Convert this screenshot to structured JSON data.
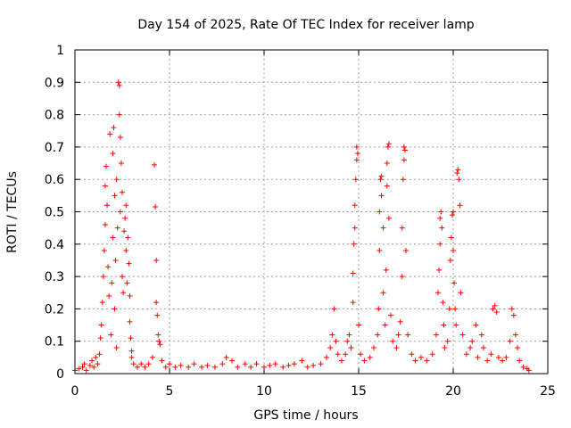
{
  "chart_data": {
    "type": "scatter",
    "title": "Day 154 of 2025, Rate Of TEC Index for receiver lamp",
    "xlabel": "GPS time / hours",
    "ylabel": "ROTI / TECUs",
    "xlim": [
      0,
      25
    ],
    "ylim": [
      0,
      1
    ],
    "xticks": [
      0,
      5,
      10,
      15,
      20,
      25
    ],
    "yticks": [
      0,
      0.1,
      0.2,
      0.3,
      0.4,
      0.5,
      0.6,
      0.7,
      0.8,
      0.9,
      1
    ],
    "ytick_labels": [
      "0",
      "0.1",
      "0.2",
      "0.3",
      "0.4",
      "0.5",
      "0.6",
      "0.7",
      "0.8",
      "0.9",
      "1"
    ],
    "grid": true,
    "marker": "+",
    "color": "#ff0000",
    "series": [
      {
        "name": "ROTI",
        "points": [
          [
            0.0,
            0.01
          ],
          [
            0.2,
            0.015
          ],
          [
            0.4,
            0.02
          ],
          [
            0.5,
            0.03
          ],
          [
            0.6,
            0.01
          ],
          [
            0.8,
            0.025
          ],
          [
            0.9,
            0.04
          ],
          [
            1.0,
            0.02
          ],
          [
            1.1,
            0.05
          ],
          [
            1.2,
            0.03
          ],
          [
            1.3,
            0.06
          ],
          [
            1.35,
            0.11
          ],
          [
            1.4,
            0.15
          ],
          [
            1.45,
            0.22
          ],
          [
            1.5,
            0.3
          ],
          [
            1.55,
            0.38
          ],
          [
            1.6,
            0.46
          ],
          [
            1.6,
            0.58
          ],
          [
            1.65,
            0.64
          ],
          [
            1.7,
            0.52
          ],
          [
            1.75,
            0.33
          ],
          [
            1.8,
            0.24
          ],
          [
            1.85,
            0.74
          ],
          [
            1.9,
            0.12
          ],
          [
            1.95,
            0.28
          ],
          [
            2.0,
            0.68
          ],
          [
            2.0,
            0.42
          ],
          [
            2.05,
            0.76
          ],
          [
            2.1,
            0.2
          ],
          [
            2.1,
            0.55
          ],
          [
            2.15,
            0.35
          ],
          [
            2.2,
            0.6
          ],
          [
            2.2,
            0.08
          ],
          [
            2.25,
            0.45
          ],
          [
            2.3,
            0.9
          ],
          [
            2.35,
            0.89
          ],
          [
            2.35,
            0.8
          ],
          [
            2.4,
            0.5
          ],
          [
            2.4,
            0.73
          ],
          [
            2.45,
            0.65
          ],
          [
            2.5,
            0.56
          ],
          [
            2.5,
            0.3
          ],
          [
            2.55,
            0.25
          ],
          [
            2.6,
            0.44
          ],
          [
            2.65,
            0.48
          ],
          [
            2.7,
            0.52
          ],
          [
            2.7,
            0.38
          ],
          [
            2.75,
            0.28
          ],
          [
            2.8,
            0.42
          ],
          [
            2.85,
            0.34
          ],
          [
            2.9,
            0.24
          ],
          [
            2.9,
            0.16
          ],
          [
            2.95,
            0.11
          ],
          [
            3.0,
            0.07
          ],
          [
            3.0,
            0.05
          ],
          [
            3.1,
            0.03
          ],
          [
            3.3,
            0.02
          ],
          [
            3.5,
            0.03
          ],
          [
            3.7,
            0.02
          ],
          [
            3.9,
            0.03
          ],
          [
            4.1,
            0.05
          ],
          [
            4.2,
            0.645
          ],
          [
            4.25,
            0.515
          ],
          [
            4.3,
            0.35
          ],
          [
            4.3,
            0.22
          ],
          [
            4.35,
            0.18
          ],
          [
            4.4,
            0.12
          ],
          [
            4.45,
            0.1
          ],
          [
            4.5,
            0.09
          ],
          [
            4.6,
            0.04
          ],
          [
            4.8,
            0.02
          ],
          [
            5.0,
            0.03
          ],
          [
            5.3,
            0.02
          ],
          [
            5.6,
            0.025
          ],
          [
            6.0,
            0.02
          ],
          [
            6.3,
            0.03
          ],
          [
            6.7,
            0.02
          ],
          [
            7.0,
            0.025
          ],
          [
            7.4,
            0.02
          ],
          [
            7.8,
            0.03
          ],
          [
            8.0,
            0.05
          ],
          [
            8.3,
            0.04
          ],
          [
            8.6,
            0.02
          ],
          [
            9.0,
            0.03
          ],
          [
            9.3,
            0.02
          ],
          [
            9.6,
            0.03
          ],
          [
            10.0,
            0.02
          ],
          [
            10.3,
            0.025
          ],
          [
            10.6,
            0.03
          ],
          [
            11.0,
            0.02
          ],
          [
            11.3,
            0.025
          ],
          [
            11.6,
            0.03
          ],
          [
            12.0,
            0.04
          ],
          [
            12.3,
            0.02
          ],
          [
            12.6,
            0.025
          ],
          [
            13.0,
            0.03
          ],
          [
            13.3,
            0.05
          ],
          [
            13.5,
            0.08
          ],
          [
            13.6,
            0.12
          ],
          [
            13.7,
            0.2
          ],
          [
            13.8,
            0.1
          ],
          [
            13.9,
            0.06
          ],
          [
            14.1,
            0.04
          ],
          [
            14.3,
            0.06
          ],
          [
            14.4,
            0.1
          ],
          [
            14.5,
            0.12
          ],
          [
            14.6,
            0.08
          ],
          [
            14.7,
            0.22
          ],
          [
            14.7,
            0.31
          ],
          [
            14.75,
            0.4
          ],
          [
            14.8,
            0.45
          ],
          [
            14.8,
            0.52
          ],
          [
            14.85,
            0.6
          ],
          [
            14.9,
            0.66
          ],
          [
            14.9,
            0.7
          ],
          [
            14.95,
            0.68
          ],
          [
            15.0,
            0.15
          ],
          [
            15.1,
            0.06
          ],
          [
            15.3,
            0.04
          ],
          [
            15.6,
            0.05
          ],
          [
            15.8,
            0.08
          ],
          [
            16.0,
            0.12
          ],
          [
            16.05,
            0.2
          ],
          [
            16.1,
            0.38
          ],
          [
            16.1,
            0.5
          ],
          [
            16.15,
            0.6
          ],
          [
            16.2,
            0.61
          ],
          [
            16.2,
            0.55
          ],
          [
            16.3,
            0.45
          ],
          [
            16.3,
            0.25
          ],
          [
            16.4,
            0.15
          ],
          [
            16.45,
            0.32
          ],
          [
            16.5,
            0.58
          ],
          [
            16.5,
            0.65
          ],
          [
            16.55,
            0.7
          ],
          [
            16.6,
            0.71
          ],
          [
            16.6,
            0.48
          ],
          [
            16.7,
            0.18
          ],
          [
            16.8,
            0.1
          ],
          [
            17.0,
            0.08
          ],
          [
            17.1,
            0.12
          ],
          [
            17.2,
            0.16
          ],
          [
            17.3,
            0.3
          ],
          [
            17.3,
            0.45
          ],
          [
            17.35,
            0.6
          ],
          [
            17.4,
            0.66
          ],
          [
            17.4,
            0.7
          ],
          [
            17.45,
            0.69
          ],
          [
            17.5,
            0.38
          ],
          [
            17.6,
            0.12
          ],
          [
            17.8,
            0.06
          ],
          [
            18.0,
            0.04
          ],
          [
            18.3,
            0.05
          ],
          [
            18.6,
            0.04
          ],
          [
            18.9,
            0.06
          ],
          [
            19.1,
            0.12
          ],
          [
            19.2,
            0.25
          ],
          [
            19.25,
            0.32
          ],
          [
            19.3,
            0.4
          ],
          [
            19.3,
            0.48
          ],
          [
            19.35,
            0.5
          ],
          [
            19.4,
            0.45
          ],
          [
            19.45,
            0.22
          ],
          [
            19.5,
            0.15
          ],
          [
            19.55,
            0.08
          ],
          [
            19.7,
            0.1
          ],
          [
            19.8,
            0.2
          ],
          [
            19.85,
            0.35
          ],
          [
            19.9,
            0.42
          ],
          [
            19.95,
            0.49
          ],
          [
            20.0,
            0.5
          ],
          [
            20.0,
            0.38
          ],
          [
            20.05,
            0.28
          ],
          [
            20.1,
            0.2
          ],
          [
            20.15,
            0.15
          ],
          [
            20.2,
            0.62
          ],
          [
            20.25,
            0.63
          ],
          [
            20.3,
            0.6
          ],
          [
            20.35,
            0.52
          ],
          [
            20.4,
            0.25
          ],
          [
            20.5,
            0.12
          ],
          [
            20.7,
            0.06
          ],
          [
            20.9,
            0.08
          ],
          [
            21.0,
            0.1
          ],
          [
            21.2,
            0.15
          ],
          [
            21.3,
            0.05
          ],
          [
            21.5,
            0.12
          ],
          [
            21.6,
            0.08
          ],
          [
            21.8,
            0.04
          ],
          [
            22.0,
            0.06
          ],
          [
            22.1,
            0.2
          ],
          [
            22.2,
            0.21
          ],
          [
            22.3,
            0.19
          ],
          [
            22.4,
            0.05
          ],
          [
            22.6,
            0.04
          ],
          [
            22.8,
            0.05
          ],
          [
            23.0,
            0.1
          ],
          [
            23.1,
            0.2
          ],
          [
            23.2,
            0.18
          ],
          [
            23.3,
            0.12
          ],
          [
            23.4,
            0.08
          ],
          [
            23.5,
            0.04
          ],
          [
            23.7,
            0.02
          ],
          [
            23.9,
            0.015
          ],
          [
            24.0,
            0.01
          ]
        ]
      }
    ]
  }
}
